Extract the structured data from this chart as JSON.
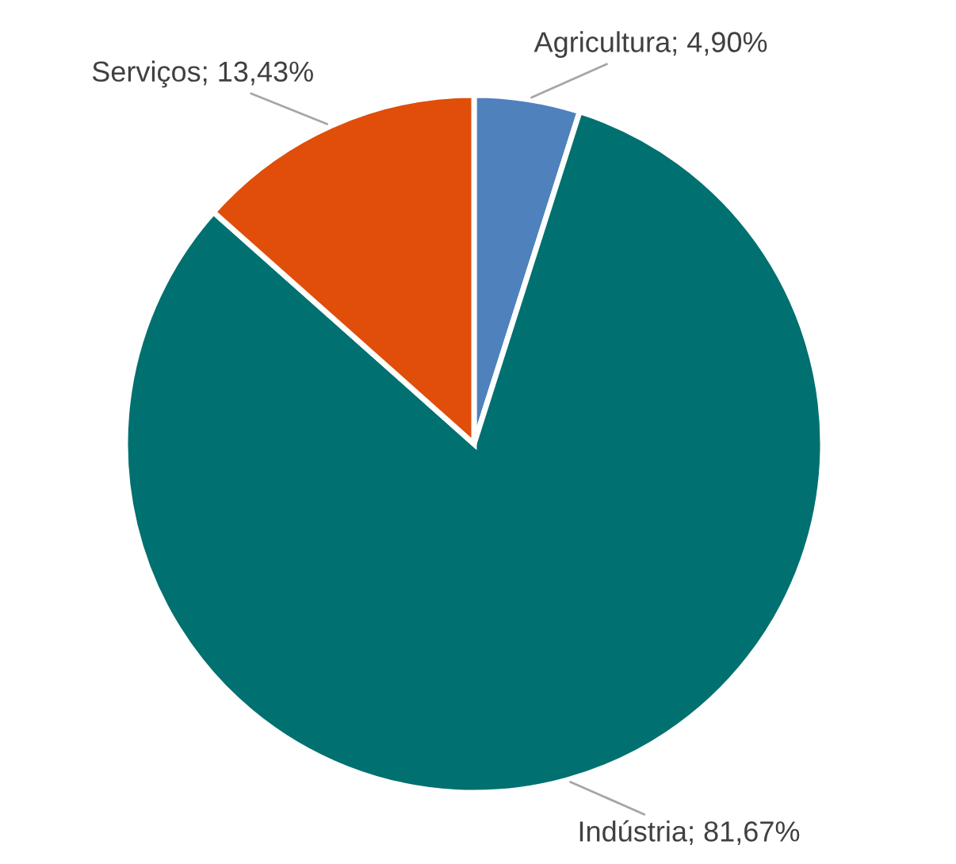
{
  "chart_data": {
    "type": "pie",
    "categories": [
      "Agricultura",
      "Indústria",
      "Serviços"
    ],
    "values": [
      4.9,
      81.67,
      13.43
    ],
    "value_labels": [
      "4,90%",
      "81,67%",
      "13,43%"
    ],
    "colors": [
      "#4f81bd",
      "#007070",
      "#e04e0a"
    ],
    "legend": false
  }
}
